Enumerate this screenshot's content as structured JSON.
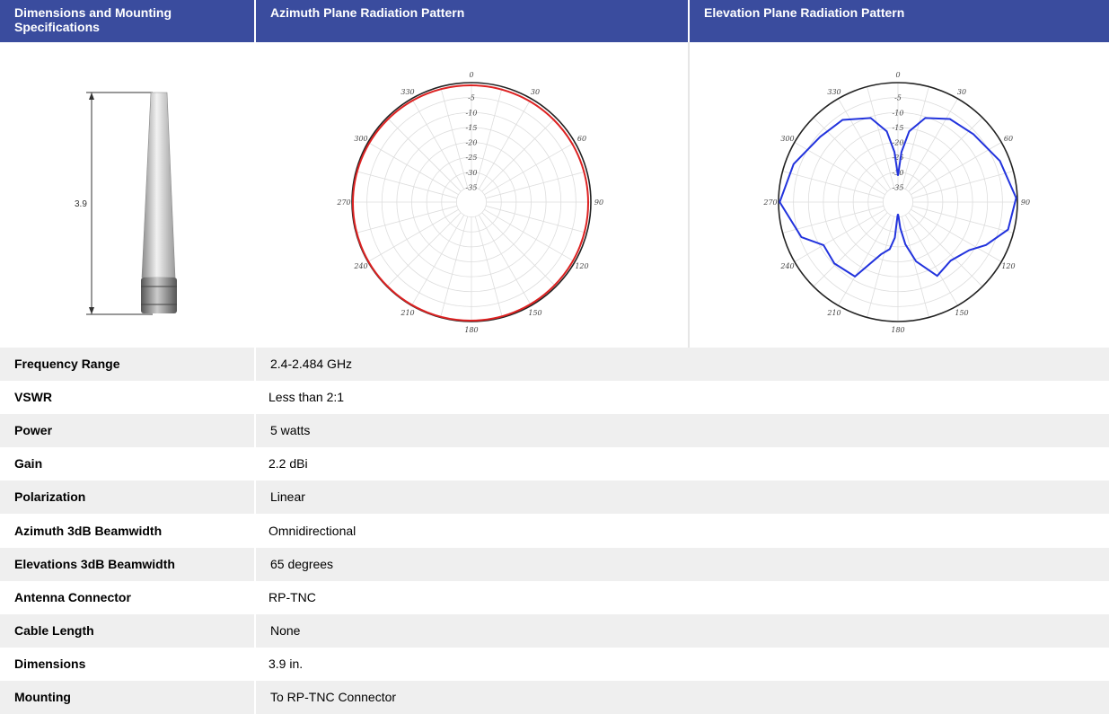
{
  "header": {
    "col1": "Dimensions and Mounting Specifications",
    "col2": "Azimuth Plane Radiation Pattern",
    "col3": "Elevation Plane Radiation Pattern"
  },
  "antenna": {
    "dimension_label": "3.9"
  },
  "azimuth_pattern": {
    "angle_labels": [
      0,
      30,
      60,
      90,
      120,
      150,
      180,
      210,
      240,
      270,
      300,
      330
    ],
    "ring_labels": [
      -5,
      -10,
      -15,
      -20,
      -25,
      -30,
      -35
    ]
  },
  "elevation_pattern": {
    "angle_labels": [
      0,
      30,
      60,
      90,
      120,
      150,
      180,
      210,
      240,
      270,
      300,
      330
    ],
    "ring_labels": [
      -5,
      -10,
      -15,
      -20,
      -25,
      -30,
      -35
    ]
  },
  "table": {
    "rows": [
      [
        "Frequency Range",
        "2.4-2.484 GHz"
      ],
      [
        "VSWR",
        "Less than 2:1"
      ],
      [
        "Power",
        "5 watts"
      ],
      [
        "Gain",
        "2.2 dBi"
      ],
      [
        "Polarization",
        "Linear"
      ],
      [
        "Azimuth 3dB Beamwidth",
        "Omnidirectional"
      ],
      [
        "Elevations 3dB Beamwidth",
        "65 degrees"
      ],
      [
        "Antenna Connector",
        "RP-TNC"
      ],
      [
        "Cable Length",
        "None"
      ],
      [
        "Dimensions",
        "3.9 in."
      ],
      [
        "Mounting",
        "To RP-TNC Connector"
      ]
    ]
  }
}
